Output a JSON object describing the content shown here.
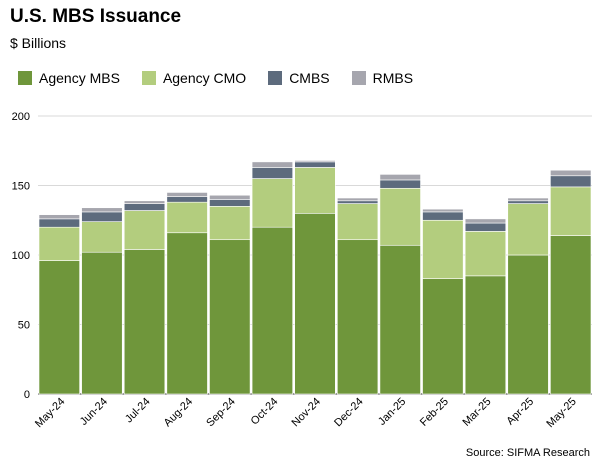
{
  "chart_data": {
    "type": "bar",
    "stacked": true,
    "title": "U.S. MBS Issuance",
    "subtitle": "$ Billions",
    "source": "Source: SIFMA Research",
    "categories": [
      "May-24",
      "Jun-24",
      "Jul-24",
      "Aug-24",
      "Sep-24",
      "Oct-24",
      "Nov-24",
      "Dec-24",
      "Jan-25",
      "Feb-25",
      "Mar-25",
      "Apr-25",
      "May-25"
    ],
    "series": [
      {
        "name": "Agency MBS",
        "color": "#6f963b",
        "values": [
          96,
          102,
          104,
          116,
          111,
          120,
          130,
          111,
          107,
          83,
          85,
          100,
          114
        ]
      },
      {
        "name": "Agency CMO",
        "color": "#b3cd7e",
        "values": [
          24,
          22,
          28,
          22,
          24,
          35,
          33,
          26,
          41,
          42,
          32,
          37,
          35
        ]
      },
      {
        "name": "CMBS",
        "color": "#5d6b7d",
        "values": [
          6,
          7,
          5,
          4,
          5,
          8,
          4,
          2,
          6,
          6,
          6,
          2,
          8
        ]
      },
      {
        "name": "RMBS",
        "color": "#a6a6ae",
        "values": [
          3,
          3,
          2,
          3,
          3,
          4,
          1,
          2,
          4,
          2,
          3,
          2,
          4
        ]
      }
    ],
    "ylim": [
      0,
      200
    ],
    "yticks": [
      0,
      50,
      100,
      150,
      200
    ],
    "grid": true,
    "legend_position": "top-left"
  }
}
